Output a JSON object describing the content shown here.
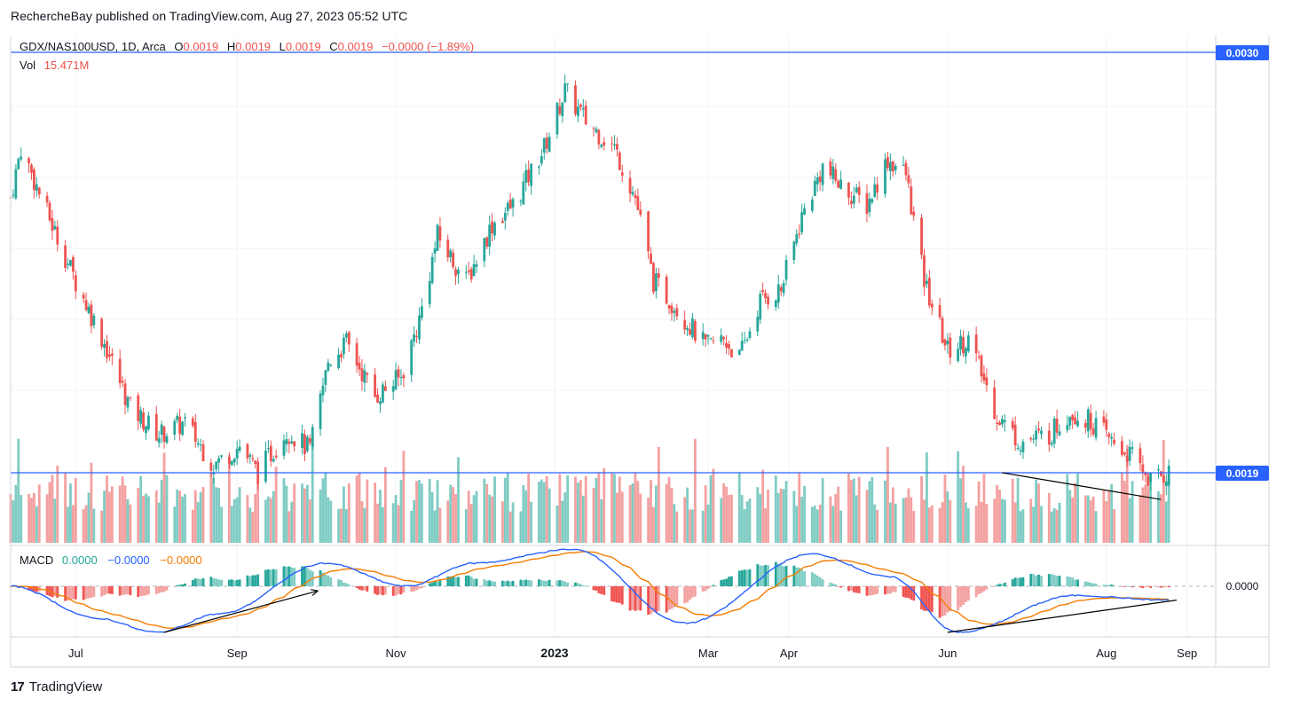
{
  "header": {
    "publisher_line": "RechercheBay published on TradingView.com, Aug 27, 2023 05:52 UTC"
  },
  "footer": {
    "brand_logo": "17",
    "brand_name": "TradingView"
  },
  "legend": {
    "symbol": "GDX/NAS100USD, 1D, Arca",
    "o_label": "O",
    "o_value": "0.0019",
    "h_label": "H",
    "h_value": "0.0019",
    "l_label": "L",
    "l_value": "0.0019",
    "c_label": "C",
    "c_value": "0.0019",
    "change": "−0.0000 (−1.89%)",
    "vol_label": "Vol",
    "vol_value": "15.471M",
    "macd_label": "MACD",
    "macd_hist": "0.0000",
    "macd_line": "−0.0000",
    "macd_signal": "−0.0000"
  },
  "price_tags": {
    "upper": "0.0030",
    "current": "0.0019",
    "macd_zero": "0.0000"
  },
  "colors": {
    "up": "#26a69a",
    "down": "#ef5350",
    "up_vol": "#7fccc4",
    "down_vol": "#f3a1a0",
    "macd": "#2962ff",
    "signal": "#f57c00",
    "hline": "#2962ff"
  },
  "chart_data": {
    "type": "candlestick",
    "symbol": "GDX/NAS100USD",
    "timeframe": "1D",
    "x_ticks": [
      "Jul",
      "Sep",
      "Nov",
      "2023",
      "Mar",
      "Apr",
      "Jun",
      "Aug",
      "Sep"
    ],
    "x_range": [
      "2022-06-06",
      "2023-09-12"
    ],
    "y_range": [
      0.0017,
      0.0031
    ],
    "horizontal_lines": [
      0.003,
      0.0019
    ],
    "price_path": [
      [
        "2022-06-06",
        0.00262
      ],
      [
        "2022-06-10",
        0.00275
      ],
      [
        "2022-06-20",
        0.00258
      ],
      [
        "2022-07-01",
        0.0024
      ],
      [
        "2022-07-12",
        0.00224
      ],
      [
        "2022-07-22",
        0.00207
      ],
      [
        "2022-08-02",
        0.002
      ],
      [
        "2022-08-12",
        0.00203
      ],
      [
        "2022-08-23",
        0.00192
      ],
      [
        "2022-09-02",
        0.00197
      ],
      [
        "2022-09-09",
        0.0019
      ],
      [
        "2022-09-20",
        0.00201
      ],
      [
        "2022-09-29",
        0.00196
      ],
      [
        "2022-10-06",
        0.00219
      ],
      [
        "2022-10-13",
        0.00224
      ],
      [
        "2022-10-24",
        0.0021
      ],
      [
        "2022-11-03",
        0.00215
      ],
      [
        "2022-11-10",
        0.0023
      ],
      [
        "2022-11-17",
        0.00252
      ],
      [
        "2022-11-28",
        0.0024
      ],
      [
        "2022-12-08",
        0.00255
      ],
      [
        "2022-12-16",
        0.0026
      ],
      [
        "2022-12-28",
        0.00275
      ],
      [
        "2023-01-05",
        0.0029
      ],
      [
        "2023-01-13",
        0.00282
      ],
      [
        "2023-01-24",
        0.00275
      ],
      [
        "2023-02-01",
        0.00262
      ],
      [
        "2023-02-08",
        0.0024
      ],
      [
        "2023-02-17",
        0.00233
      ],
      [
        "2023-02-28",
        0.00223
      ],
      [
        "2023-03-07",
        0.00225
      ],
      [
        "2023-03-13",
        0.0022
      ],
      [
        "2023-03-21",
        0.00235
      ],
      [
        "2023-03-29",
        0.00238
      ],
      [
        "2023-04-06",
        0.00257
      ],
      [
        "2023-04-14",
        0.0027
      ],
      [
        "2023-04-21",
        0.00265
      ],
      [
        "2023-05-01",
        0.0026
      ],
      [
        "2023-05-09",
        0.00272
      ],
      [
        "2023-05-16",
        0.00268
      ],
      [
        "2023-05-23",
        0.0024
      ],
      [
        "2023-06-01",
        0.00222
      ],
      [
        "2023-06-09",
        0.00225
      ],
      [
        "2023-06-20",
        0.00205
      ],
      [
        "2023-06-29",
        0.00198
      ],
      [
        "2023-07-10",
        0.002
      ],
      [
        "2023-07-18",
        0.00206
      ],
      [
        "2023-07-27",
        0.00203
      ],
      [
        "2023-08-03",
        0.00198
      ],
      [
        "2023-08-11",
        0.00194
      ],
      [
        "2023-08-18",
        0.00188
      ],
      [
        "2023-08-25",
        0.0019
      ]
    ],
    "annotations": {
      "price_trendline": [
        [
          "2023-06-22",
          0.0019
        ],
        [
          "2023-08-22",
          0.00183
        ]
      ],
      "macd_arrow": [
        [
          "2022-08-04",
          -0.0001
        ],
        [
          "2022-10-02",
          -1e-05
        ]
      ],
      "macd_trendline": [
        [
          "2023-06-01",
          -0.0001
        ],
        [
          "2023-08-28",
          -3e-05
        ]
      ]
    },
    "macd_key_points": [
      [
        "2022-06-06",
        0.0
      ],
      [
        "2022-07-10",
        -7e-05
      ],
      [
        "2022-08-01",
        -0.0001
      ],
      [
        "2022-08-25",
        -6e-05
      ],
      [
        "2022-10-05",
        5e-05
      ],
      [
        "2022-11-05",
        0.0
      ],
      [
        "2022-12-01",
        5e-05
      ],
      [
        "2023-01-08",
        8e-05
      ],
      [
        "2023-02-20",
        -8e-05
      ],
      [
        "2023-04-10",
        7e-05
      ],
      [
        "2023-05-10",
        2e-05
      ],
      [
        "2023-06-05",
        -0.0001
      ],
      [
        "2023-07-20",
        -2e-05
      ],
      [
        "2023-08-25",
        -3e-05
      ]
    ]
  }
}
